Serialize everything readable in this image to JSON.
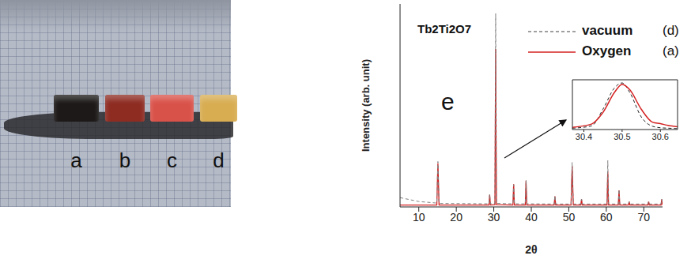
{
  "photo": {
    "samples": [
      {
        "label": "a",
        "color": "#1c1918"
      },
      {
        "label": "b",
        "color": "#8e2c22"
      },
      {
        "label": "c",
        "color": "#d9524a"
      },
      {
        "label": "d",
        "color": "#d8ad52"
      }
    ]
  },
  "chart_data": [
    {
      "type": "line",
      "title": "Tb2Ti2O7",
      "annotations": [
        "e"
      ],
      "x_label": "2θ",
      "y_label": "Intensity (arb. unit)",
      "legend": "top right",
      "tick_labels": "x",
      "xlim": [
        5,
        75
      ],
      "xticks": [
        10,
        20,
        30,
        40,
        50,
        60,
        70
      ],
      "ylim": [
        0,
        1050
      ],
      "x": [
        5,
        10,
        14.8,
        15.1,
        15.4,
        28.7,
        28.9,
        29.1,
        30.3,
        30.5,
        30.7,
        35.1,
        35.3,
        35.5,
        38.4,
        38.6,
        38.8,
        46.1,
        46.3,
        46.5,
        50.6,
        50.9,
        51.2,
        53.2,
        53.4,
        53.6,
        60.2,
        60.4,
        60.6,
        63.2,
        63.4,
        63.6,
        65.9,
        66.1,
        66.3,
        71.1,
        71.3,
        71.5,
        74.6,
        74.8,
        75
      ],
      "series": [
        {
          "name": "vacuum",
          "label": "(d)",
          "color": "#808080",
          "line_style": "dashed",
          "values": [
            48,
            28,
            20,
            235,
            18,
            16,
            66,
            16,
            18,
            1000,
            18,
            16,
            115,
            16,
            16,
            138,
            16,
            15,
            58,
            15,
            15,
            230,
            15,
            15,
            40,
            15,
            15,
            240,
            15,
            15,
            90,
            15,
            15,
            28,
            15,
            15,
            28,
            15,
            15,
            40,
            15
          ]
        },
        {
          "name": "Oxygen",
          "label": "(a)",
          "color": "#d42222",
          "line_style": "solid",
          "values": [
            10,
            10,
            10,
            225,
            10,
            10,
            62,
            10,
            12,
            817,
            12,
            10,
            117,
            10,
            10,
            136,
            10,
            10,
            55,
            10,
            10,
            210,
            10,
            10,
            39,
            10,
            10,
            183,
            10,
            10,
            86,
            10,
            10,
            27,
            10,
            10,
            27,
            10,
            10,
            39,
            10
          ]
        }
      ]
    },
    {
      "type": "line",
      "tick_labels": "x",
      "xlim": [
        30.37,
        30.645
      ],
      "xticks": [
        30.4,
        30.5,
        30.6
      ],
      "ylim": [
        0,
        110
      ],
      "x": [
        30.37,
        30.42,
        30.45,
        30.48,
        30.5,
        30.52,
        30.55,
        30.58,
        30.6,
        30.62,
        30.645
      ],
      "series": [
        {
          "color": "#222222",
          "line_style": "dashed",
          "values": [
            3,
            8,
            45,
            92,
            103,
            82,
            28,
            7,
            4,
            3,
            2
          ]
        },
        {
          "color": "#d42222",
          "line_style": "solid",
          "values": [
            5,
            12,
            38,
            82,
            100,
            88,
            45,
            16,
            13,
            9,
            6
          ]
        }
      ]
    }
  ]
}
